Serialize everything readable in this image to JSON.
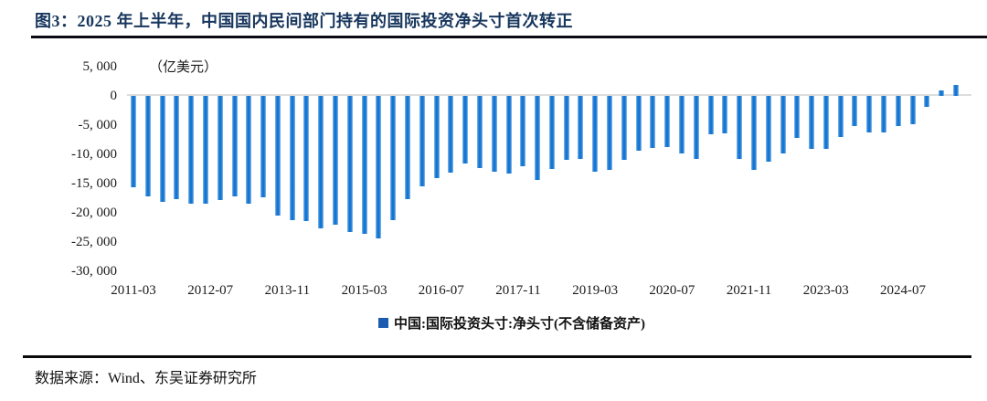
{
  "figure": {
    "title": "图3：2025 年上半年，中国国内民间部门持有的国际投资净头寸首次转正",
    "source": "数据来源：Wind、东吴证券研究所"
  },
  "chart_data": {
    "type": "bar",
    "title": "中国国内民间部门持有的国际投资净头寸",
    "unit_label": "（亿美元）",
    "legend": "中国:国际投资头寸:净头寸(不含储备资产)",
    "legend_position": "bottom-center",
    "series_color": "#1575d2",
    "legend_marker_color": "#1b5cb0",
    "ylabel": "",
    "xlabel": "",
    "ylim": [
      -30000,
      5000
    ],
    "grid": "zero-line-only",
    "y_tick_labels": [
      "5, 000",
      "0",
      "-5, 000",
      "-10, 000",
      "-15, 000",
      "-20, 000",
      "-25, 000",
      "-30, 000"
    ],
    "y_tick_values": [
      5000,
      0,
      -5000,
      -10000,
      -15000,
      -20000,
      -25000,
      -30000
    ],
    "x_tick_labels": [
      "2011-03",
      "2012-07",
      "2013-11",
      "2015-03",
      "2016-07",
      "2017-11",
      "2019-03",
      "2020-07",
      "2021-11",
      "2023-03",
      "2024-07"
    ],
    "x": [
      "2011-03",
      "2011-06",
      "2011-09",
      "2011-12",
      "2012-03",
      "2012-06",
      "2012-09",
      "2012-12",
      "2013-03",
      "2013-06",
      "2013-09",
      "2013-12",
      "2014-03",
      "2014-06",
      "2014-09",
      "2014-12",
      "2015-03",
      "2015-06",
      "2015-09",
      "2015-12",
      "2016-03",
      "2016-06",
      "2016-09",
      "2016-12",
      "2017-03",
      "2017-06",
      "2017-09",
      "2017-12",
      "2018-03",
      "2018-06",
      "2018-09",
      "2018-12",
      "2019-03",
      "2019-06",
      "2019-09",
      "2019-12",
      "2020-03",
      "2020-06",
      "2020-09",
      "2020-12",
      "2021-03",
      "2021-06",
      "2021-09",
      "2021-12",
      "2022-03",
      "2022-06",
      "2022-09",
      "2022-12",
      "2023-03",
      "2023-06",
      "2023-09",
      "2023-12",
      "2024-03",
      "2024-06",
      "2024-09",
      "2024-12",
      "2025-03",
      "2025-06"
    ],
    "values": [
      -15600,
      -17200,
      -18100,
      -17600,
      -18400,
      -18400,
      -17800,
      -17200,
      -18500,
      -17300,
      -20400,
      -21200,
      -21400,
      -22700,
      -22100,
      -23300,
      -23600,
      -24300,
      -21200,
      -17700,
      -15400,
      -14100,
      -13200,
      -11600,
      -12400,
      -12900,
      -13300,
      -12100,
      -14300,
      -12500,
      -11000,
      -10800,
      -13000,
      -12600,
      -11000,
      -9400,
      -8900,
      -8700,
      -9800,
      -10800,
      -6500,
      -6400,
      -10800,
      -12600,
      -11200,
      -9900,
      -7200,
      -9100,
      -9100,
      -7000,
      -5200,
      -6300,
      -6200,
      -5200,
      -4800,
      -1800,
      900,
      1800
    ]
  }
}
